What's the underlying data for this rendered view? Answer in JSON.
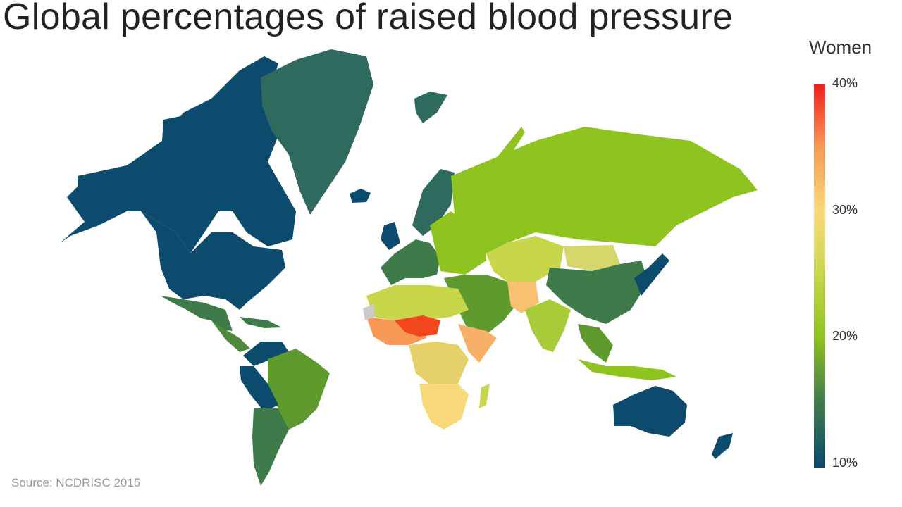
{
  "title": "Global percentages of raised blood pressure",
  "legend": {
    "title": "Women",
    "ticks": [
      "40%",
      "30%",
      "20%",
      "10%"
    ],
    "scale": [
      {
        "value": 10,
        "color": "#0c4a6e"
      },
      {
        "value": 15,
        "color": "#3f7a4a"
      },
      {
        "value": 20,
        "color": "#8fc31f"
      },
      {
        "value": 25,
        "color": "#c8d64a"
      },
      {
        "value": 30,
        "color": "#f8d878"
      },
      {
        "value": 35,
        "color": "#f89a55"
      },
      {
        "value": 40,
        "color": "#f21d1d"
      }
    ]
  },
  "source": "Source: NCDRISC 2015",
  "colors": {
    "land_default": "#8fc31f",
    "no_data": "#cccccc"
  }
}
